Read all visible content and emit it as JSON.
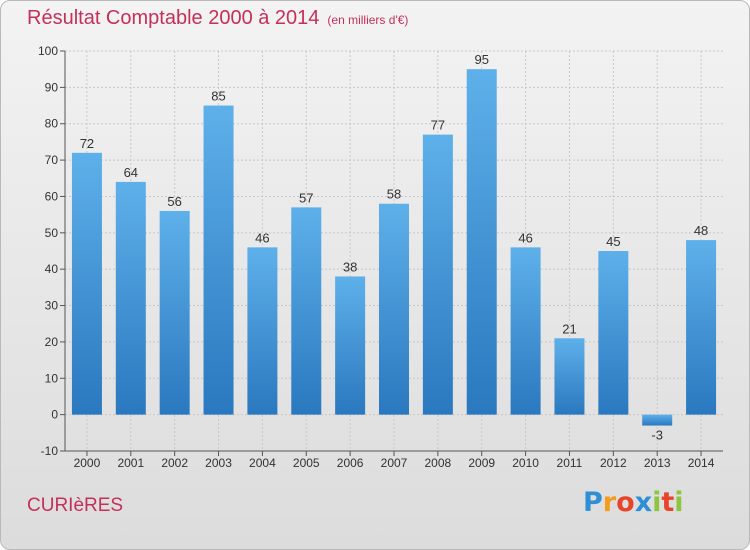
{
  "chart_data": {
    "type": "bar",
    "title": "Résultat Comptable 2000 à 2014",
    "subtitle": "(en milliers d'€)",
    "categories": [
      "2000",
      "2001",
      "2002",
      "2003",
      "2004",
      "2005",
      "2006",
      "2007",
      "2008",
      "2009",
      "2010",
      "2011",
      "2012",
      "2013",
      "2014"
    ],
    "values": [
      72,
      64,
      56,
      85,
      46,
      57,
      38,
      58,
      77,
      95,
      46,
      21,
      45,
      -3,
      48
    ],
    "yticks": [
      -10,
      0,
      10,
      20,
      30,
      40,
      50,
      60,
      70,
      80,
      90,
      100
    ],
    "ylim": [
      -10,
      100
    ],
    "grid": true,
    "bar_color_top": "#5eb0ea",
    "bar_color_bottom": "#2a78bf"
  },
  "place_name": "CURIèRES",
  "logo": {
    "letters": [
      "P",
      "r",
      "o",
      "x",
      "i",
      "t",
      "i"
    ],
    "colors": [
      "#2f8fd6",
      "#f39c1e",
      "#e8442b",
      "#2f8fd6",
      "#8cc63f",
      "#e8442b",
      "#8cc63f"
    ]
  }
}
